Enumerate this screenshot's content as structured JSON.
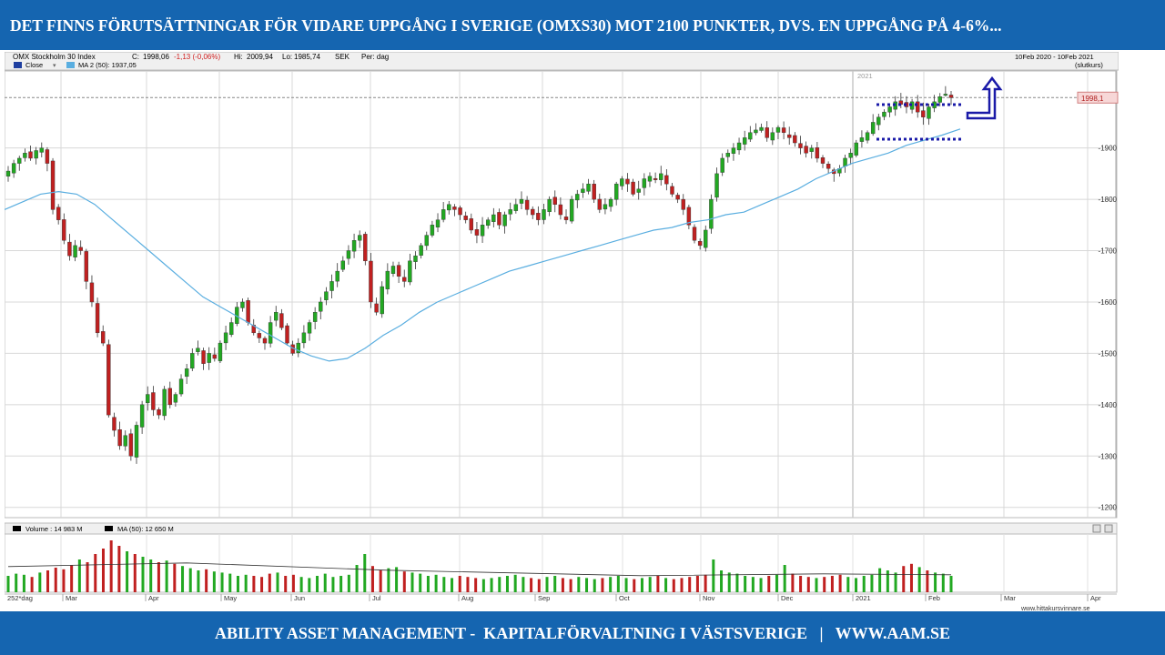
{
  "slide": {
    "title": "DET FINNS FÖRUTSÄTTNINGAR FÖR VIDARE UPPGÅNG I SVERIGE (OMXS30) MOT 2100 PUNKTER, DVS. EN UPPGÅNG PÅ 4-6%...",
    "footer": "ABILITY ASSET MANAGEMENT -  KAPITALFÖRVALTNING I VÄSTSVERIGE   |   WWW.AAM.SE",
    "banner_color": "#1565b0"
  },
  "chart_data": {
    "type": "candlestick",
    "header": {
      "name": "OMX Stockholm 30 Index",
      "close_label": "C:",
      "close_value": "1998,06",
      "change": "-1,13 (-0,06%)",
      "high_label": "Hi:",
      "high_value": "2009,94",
      "low_label": "Lo:",
      "low_value": "1985,74",
      "currency": "SEK",
      "period": "Per: dag",
      "range": "10Feb 2020 - 10Feb 2021",
      "range_note": "(slutkurs)"
    },
    "legend": [
      {
        "name": "Close",
        "color": "#1f3fa0"
      },
      {
        "name": "MA 2 (50): 1937,05",
        "color": "#5aaee0"
      }
    ],
    "volume_legend": [
      {
        "name": "Volume : 14 983 M",
        "color": "#000000"
      },
      {
        "name": "MA (50): 12 650 M",
        "color": "#000000"
      }
    ],
    "ylim": [
      1180,
      2050
    ],
    "y_ticks": [
      1200,
      1300,
      1400,
      1500,
      1600,
      1700,
      1800,
      1900
    ],
    "last_price": 1998.1,
    "last_price_label": "1998,1",
    "year_marker": "2021",
    "x_labels": [
      "252*dag",
      "Mar",
      "Apr",
      "May",
      "Jun",
      "Jul",
      "Aug",
      "Sep",
      "Oct",
      "Nov",
      "Dec",
      "2021",
      "Feb",
      "Mar",
      "Apr"
    ],
    "close_series": [
      1855,
      1870,
      1880,
      1890,
      1880,
      1895,
      1900,
      1870,
      1780,
      1760,
      1720,
      1690,
      1710,
      1700,
      1640,
      1600,
      1540,
      1520,
      1380,
      1350,
      1320,
      1340,
      1300,
      1360,
      1400,
      1420,
      1390,
      1380,
      1430,
      1400,
      1420,
      1450,
      1470,
      1500,
      1510,
      1480,
      1500,
      1490,
      1520,
      1540,
      1560,
      1590,
      1600,
      1560,
      1540,
      1530,
      1520,
      1560,
      1580,
      1550,
      1520,
      1500,
      1520,
      1540,
      1560,
      1580,
      1600,
      1620,
      1640,
      1660,
      1680,
      1700,
      1720,
      1730,
      1680,
      1600,
      1580,
      1630,
      1660,
      1670,
      1650,
      1640,
      1680,
      1690,
      1710,
      1730,
      1750,
      1760,
      1780,
      1790,
      1780,
      1770,
      1760,
      1740,
      1730,
      1750,
      1760,
      1770,
      1750,
      1770,
      1780,
      1790,
      1800,
      1780,
      1770,
      1760,
      1780,
      1800,
      1790,
      1770,
      1760,
      1800,
      1810,
      1820,
      1830,
      1800,
      1780,
      1790,
      1800,
      1830,
      1840,
      1830,
      1810,
      1820,
      1840,
      1845,
      1840,
      1850,
      1830,
      1810,
      1800,
      1780,
      1750,
      1720,
      1710,
      1740,
      1800,
      1850,
      1880,
      1890,
      1900,
      1910,
      1920,
      1930,
      1935,
      1940,
      1920,
      1930,
      1940,
      1930,
      1920,
      1910,
      1900,
      1890,
      1900,
      1880,
      1870,
      1860,
      1850,
      1860,
      1880,
      1890,
      1910,
      1920,
      1930,
      1950,
      1960,
      1970,
      1980,
      1990,
      1985,
      1980,
      1990,
      1970,
      1960,
      1980,
      1990,
      2000,
      2005,
      1998
    ],
    "ma_series": [
      1780,
      1795,
      1810,
      1815,
      1810,
      1790,
      1760,
      1730,
      1700,
      1670,
      1640,
      1610,
      1590,
      1570,
      1550,
      1530,
      1510,
      1495,
      1485,
      1490,
      1510,
      1535,
      1555,
      1580,
      1600,
      1615,
      1630,
      1645,
      1660,
      1670,
      1680,
      1690,
      1700,
      1710,
      1720,
      1730,
      1740,
      1745,
      1755,
      1760,
      1770,
      1775,
      1790,
      1805,
      1820,
      1840,
      1855,
      1870,
      1880,
      1890,
      1905,
      1915,
      1925,
      1937
    ],
    "volume_series": [
      30,
      34,
      32,
      28,
      36,
      40,
      45,
      42,
      50,
      60,
      55,
      70,
      80,
      95,
      85,
      75,
      70,
      65,
      60,
      55,
      58,
      52,
      48,
      44,
      40,
      42,
      38,
      36,
      34,
      30,
      32,
      30,
      28,
      34,
      36,
      30,
      32,
      28,
      26,
      30,
      34,
      28,
      30,
      32,
      50,
      70,
      48,
      40,
      44,
      46,
      38,
      36,
      34,
      30,
      32,
      28,
      26,
      30,
      28,
      26,
      24,
      26,
      28,
      30,
      32,
      28,
      26,
      24,
      28,
      30,
      26,
      24,
      28,
      26,
      24,
      26,
      28,
      30,
      26,
      24,
      26,
      28,
      30,
      26,
      24,
      26,
      28,
      30,
      32,
      60,
      40,
      36,
      34,
      30,
      28,
      26,
      30,
      32,
      50,
      34,
      30,
      28,
      26,
      28,
      30,
      32,
      28,
      26,
      30,
      32,
      44,
      40,
      36,
      48,
      52,
      46,
      40,
      36,
      34,
      30
    ],
    "volume_ma": 37,
    "annotation": "upward arrow with dotted channel lines"
  }
}
